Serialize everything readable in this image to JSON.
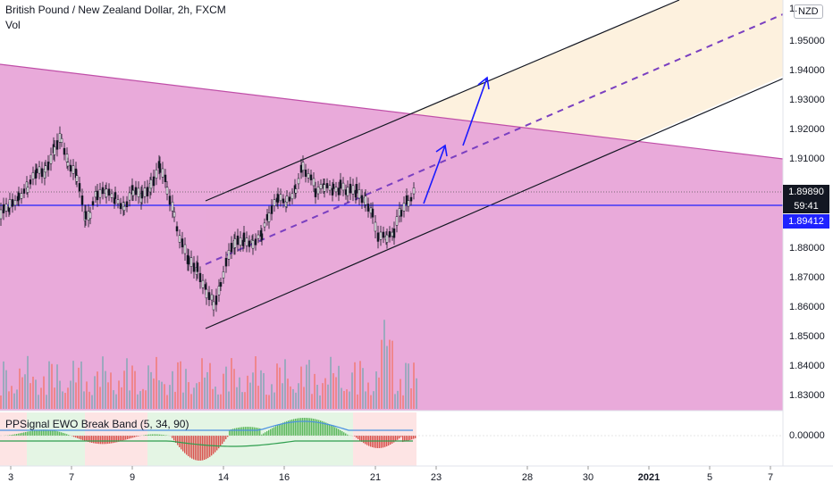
{
  "header": {
    "title": "British Pound / New Zealand Dollar, 2h, FXCM",
    "vol_label": "Vol",
    "currency_badge": "NZD"
  },
  "oscillator": {
    "label": "PPSignal EWO Break Band (5, 34, 90)",
    "zero_label": "0.00000"
  },
  "price_scale": {
    "labels": [
      "1.95000",
      "1.94000",
      "1.93000",
      "1.92000",
      "1.91000",
      "1.88000",
      "1.87000",
      "1.86000",
      "1.85000",
      "1.84000",
      "1.83000"
    ],
    "top_partial": "1."
  },
  "price_tags": {
    "last_price": "1.89890",
    "countdown": "59:41",
    "horizontal_line_price": "1.89412"
  },
  "time_scale": {
    "labels": [
      "3",
      "7",
      "9",
      "14",
      "16",
      "21",
      "23",
      "28",
      "30",
      "2021",
      "5",
      "7"
    ]
  },
  "colors": {
    "wedge_fill": "#e8a5d8",
    "wedge_line": "#c04fa8",
    "channel_fill": "#fdf1de",
    "horizontal_line": "#1f22ff",
    "bull_candle": "#131722",
    "vol_up": "#8fa8b8",
    "vol_down": "#f08080",
    "arrow": "#1a1aff",
    "median_dash": "#7a3fc0"
  }
}
